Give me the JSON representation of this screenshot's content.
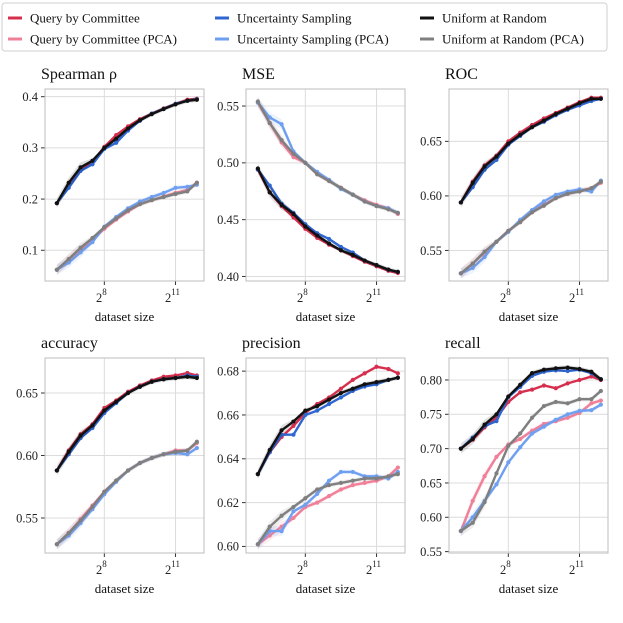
{
  "legend": [
    {
      "label": "Query by Committee",
      "color": "#d62f4e"
    },
    {
      "label": "Query by Committee (PCA)",
      "color": "#f07f98"
    },
    {
      "label": "Uncertainty Sampling",
      "color": "#2e66d2"
    },
    {
      "label": "Uncertainty Sampling (PCA)",
      "color": "#6f9ff0"
    },
    {
      "label": "Uniform at Random",
      "color": "#111111"
    },
    {
      "label": "Uniform at Random (PCA)",
      "color": "#7f7f7f"
    }
  ],
  "x_tick_labels": [
    {
      "base": "2",
      "exp": "8",
      "log2": 8
    },
    {
      "base": "2",
      "exp": "11",
      "log2": 11
    }
  ],
  "chart_data": [
    {
      "type": "line",
      "title": "Spearman ρ",
      "xlabel": "dataset size",
      "ylabel": "",
      "xscale": "log2",
      "xlim_log2": [
        5.5,
        12.2
      ],
      "ylim": [
        0.04,
        0.415
      ],
      "yticks": [
        0.1,
        0.2,
        0.3,
        0.4
      ],
      "ytick_labels": [
        "0.1",
        "0.2",
        "0.3",
        "0.4"
      ],
      "grid": true,
      "x_log2": [
        6,
        6.5,
        7,
        7.5,
        8,
        8.5,
        9,
        9.5,
        10,
        10.5,
        11,
        11.5,
        11.9
      ],
      "series": [
        {
          "name": "Query by Committee",
          "values": [
            0.192,
            0.228,
            0.258,
            0.272,
            0.302,
            0.325,
            0.342,
            0.356,
            0.367,
            0.377,
            0.386,
            0.394,
            0.396
          ]
        },
        {
          "name": "Query by Committee (PCA)",
          "values": [
            0.062,
            0.082,
            0.102,
            0.12,
            0.142,
            0.16,
            0.176,
            0.19,
            0.198,
            0.205,
            0.212,
            0.218,
            0.232
          ]
        },
        {
          "name": "Uncertainty Sampling",
          "values": [
            0.192,
            0.222,
            0.255,
            0.268,
            0.298,
            0.31,
            0.334,
            0.353,
            0.367,
            0.376,
            0.386,
            0.392,
            0.395
          ]
        },
        {
          "name": "Uncertainty Sampling (PCA)",
          "values": [
            0.062,
            0.076,
            0.096,
            0.116,
            0.146,
            0.165,
            0.182,
            0.195,
            0.204,
            0.212,
            0.222,
            0.224,
            0.228
          ]
        },
        {
          "name": "Uniform at Random",
          "values": [
            0.192,
            0.232,
            0.262,
            0.275,
            0.3,
            0.318,
            0.338,
            0.354,
            0.366,
            0.376,
            0.385,
            0.392,
            0.394
          ]
        },
        {
          "name": "Uniform at Random (PCA)",
          "values": [
            0.062,
            0.083,
            0.105,
            0.124,
            0.145,
            0.162,
            0.178,
            0.19,
            0.198,
            0.204,
            0.21,
            0.215,
            0.232
          ]
        }
      ]
    },
    {
      "type": "line",
      "title": "MSE",
      "xlabel": "dataset size",
      "ylabel": "",
      "xscale": "log2",
      "xlim_log2": [
        5.5,
        12.2
      ],
      "ylim": [
        0.396,
        0.565
      ],
      "yticks": [
        0.4,
        0.45,
        0.5,
        0.55
      ],
      "ytick_labels": [
        "0.40",
        "0.45",
        "0.50",
        "0.55"
      ],
      "grid": true,
      "x_log2": [
        6,
        6.5,
        7,
        7.5,
        8,
        8.5,
        9,
        9.5,
        10,
        10.5,
        11,
        11.5,
        11.9
      ],
      "series": [
        {
          "name": "Query by Committee",
          "values": [
            0.494,
            0.474,
            0.462,
            0.452,
            0.442,
            0.434,
            0.428,
            0.423,
            0.418,
            0.413,
            0.409,
            0.405,
            0.403
          ]
        },
        {
          "name": "Query by Committee (PCA)",
          "values": [
            0.553,
            0.535,
            0.518,
            0.505,
            0.5,
            0.49,
            0.484,
            0.478,
            0.472,
            0.467,
            0.463,
            0.46,
            0.455
          ]
        },
        {
          "name": "Uncertainty Sampling",
          "values": [
            0.494,
            0.48,
            0.464,
            0.456,
            0.446,
            0.438,
            0.433,
            0.426,
            0.421,
            0.414,
            0.41,
            0.406,
            0.404
          ]
        },
        {
          "name": "Uncertainty Sampling (PCA)",
          "values": [
            0.553,
            0.54,
            0.534,
            0.51,
            0.5,
            0.492,
            0.485,
            0.477,
            0.472,
            0.466,
            0.462,
            0.46,
            0.456
          ]
        },
        {
          "name": "Uniform at Random",
          "values": [
            0.495,
            0.474,
            0.463,
            0.455,
            0.444,
            0.436,
            0.429,
            0.423,
            0.419,
            0.414,
            0.41,
            0.406,
            0.404
          ]
        },
        {
          "name": "Uniform at Random (PCA)",
          "values": [
            0.554,
            0.535,
            0.52,
            0.508,
            0.5,
            0.49,
            0.484,
            0.478,
            0.472,
            0.466,
            0.462,
            0.459,
            0.456
          ]
        }
      ]
    },
    {
      "type": "line",
      "title": "ROC",
      "xlabel": "dataset size",
      "ylabel": "",
      "xscale": "log2",
      "xlim_log2": [
        5.5,
        12.2
      ],
      "ylim": [
        0.522,
        0.698
      ],
      "yticks": [
        0.55,
        0.6,
        0.65
      ],
      "ytick_labels": [
        "0.55",
        "0.60",
        "0.65"
      ],
      "grid": true,
      "x_log2": [
        6,
        6.5,
        7,
        7.5,
        8,
        8.5,
        9,
        9.5,
        10,
        10.5,
        11,
        11.5,
        11.9
      ],
      "series": [
        {
          "name": "Query by Committee",
          "values": [
            0.594,
            0.613,
            0.628,
            0.637,
            0.65,
            0.658,
            0.665,
            0.671,
            0.676,
            0.681,
            0.686,
            0.69,
            0.69
          ]
        },
        {
          "name": "Query by Committee (PCA)",
          "values": [
            0.529,
            0.538,
            0.548,
            0.558,
            0.568,
            0.576,
            0.585,
            0.592,
            0.598,
            0.602,
            0.605,
            0.607,
            0.612
          ]
        },
        {
          "name": "Uncertainty Sampling",
          "values": [
            0.594,
            0.608,
            0.624,
            0.633,
            0.647,
            0.655,
            0.663,
            0.668,
            0.674,
            0.679,
            0.683,
            0.687,
            0.689
          ]
        },
        {
          "name": "Uncertainty Sampling (PCA)",
          "values": [
            0.529,
            0.534,
            0.544,
            0.558,
            0.567,
            0.578,
            0.587,
            0.595,
            0.601,
            0.604,
            0.606,
            0.604,
            0.614
          ]
        },
        {
          "name": "Uniform at Random",
          "values": [
            0.594,
            0.612,
            0.627,
            0.636,
            0.648,
            0.656,
            0.663,
            0.669,
            0.675,
            0.68,
            0.685,
            0.689,
            0.689
          ]
        },
        {
          "name": "Uniform at Random (PCA)",
          "values": [
            0.529,
            0.538,
            0.549,
            0.558,
            0.568,
            0.576,
            0.585,
            0.591,
            0.598,
            0.602,
            0.604,
            0.607,
            0.613
          ]
        }
      ]
    },
    {
      "type": "line",
      "title": "accuracy",
      "xlabel": "dataset size",
      "ylabel": "",
      "xscale": "log2",
      "xlim_log2": [
        5.5,
        12.2
      ],
      "ylim": [
        0.522,
        0.678
      ],
      "yticks": [
        0.55,
        0.6,
        0.65
      ],
      "ytick_labels": [
        "0.55",
        "0.60",
        "0.65"
      ],
      "grid": true,
      "x_log2": [
        6,
        6.5,
        7,
        7.5,
        8,
        8.5,
        9,
        9.5,
        10,
        10.5,
        11,
        11.5,
        11.9
      ],
      "series": [
        {
          "name": "Query by Committee",
          "values": [
            0.588,
            0.604,
            0.617,
            0.625,
            0.638,
            0.644,
            0.651,
            0.656,
            0.66,
            0.663,
            0.664,
            0.666,
            0.664
          ]
        },
        {
          "name": "Query by Committee (PCA)",
          "values": [
            0.529,
            0.538,
            0.549,
            0.56,
            0.571,
            0.58,
            0.588,
            0.594,
            0.598,
            0.601,
            0.604,
            0.604,
            0.61
          ]
        },
        {
          "name": "Uncertainty Sampling",
          "values": [
            0.588,
            0.601,
            0.614,
            0.622,
            0.634,
            0.642,
            0.65,
            0.655,
            0.659,
            0.661,
            0.662,
            0.664,
            0.663
          ]
        },
        {
          "name": "Uncertainty Sampling (PCA)",
          "values": [
            0.529,
            0.536,
            0.546,
            0.557,
            0.569,
            0.579,
            0.588,
            0.594,
            0.598,
            0.601,
            0.602,
            0.601,
            0.606
          ]
        },
        {
          "name": "Uniform at Random",
          "values": [
            0.588,
            0.603,
            0.616,
            0.624,
            0.636,
            0.643,
            0.65,
            0.655,
            0.659,
            0.661,
            0.662,
            0.663,
            0.662
          ]
        },
        {
          "name": "Uniform at Random (PCA)",
          "values": [
            0.529,
            0.538,
            0.548,
            0.559,
            0.571,
            0.58,
            0.588,
            0.594,
            0.598,
            0.601,
            0.603,
            0.604,
            0.611
          ]
        }
      ]
    },
    {
      "type": "line",
      "title": "precision",
      "xlabel": "dataset size",
      "ylabel": "",
      "xscale": "log2",
      "xlim_log2": [
        5.5,
        12.2
      ],
      "ylim": [
        0.597,
        0.686
      ],
      "yticks": [
        0.6,
        0.62,
        0.64,
        0.66,
        0.68
      ],
      "ytick_labels": [
        "0.60",
        "0.62",
        "0.64",
        "0.66",
        "0.68"
      ],
      "grid": true,
      "x_log2": [
        6,
        6.5,
        7,
        7.5,
        8,
        8.5,
        9,
        9.5,
        10,
        10.5,
        11,
        11.5,
        11.9
      ],
      "series": [
        {
          "name": "Query by Committee",
          "values": [
            0.633,
            0.643,
            0.65,
            0.655,
            0.661,
            0.665,
            0.668,
            0.672,
            0.676,
            0.679,
            0.682,
            0.681,
            0.679
          ]
        },
        {
          "name": "Query by Committee (PCA)",
          "values": [
            0.601,
            0.605,
            0.609,
            0.613,
            0.618,
            0.62,
            0.623,
            0.626,
            0.628,
            0.629,
            0.63,
            0.632,
            0.636
          ]
        },
        {
          "name": "Uncertainty Sampling",
          "values": [
            0.633,
            0.643,
            0.651,
            0.651,
            0.66,
            0.662,
            0.665,
            0.668,
            0.671,
            0.673,
            0.674,
            0.676,
            0.677
          ]
        },
        {
          "name": "Uncertainty Sampling (PCA)",
          "values": [
            0.601,
            0.607,
            0.607,
            0.616,
            0.619,
            0.624,
            0.63,
            0.634,
            0.634,
            0.632,
            0.632,
            0.631,
            0.634
          ]
        },
        {
          "name": "Uniform at Random",
          "values": [
            0.633,
            0.644,
            0.653,
            0.657,
            0.662,
            0.664,
            0.667,
            0.67,
            0.672,
            0.674,
            0.675,
            0.676,
            0.677
          ]
        },
        {
          "name": "Uniform at Random (PCA)",
          "values": [
            0.601,
            0.609,
            0.614,
            0.618,
            0.622,
            0.626,
            0.628,
            0.629,
            0.63,
            0.631,
            0.631,
            0.632,
            0.633
          ]
        }
      ]
    },
    {
      "type": "line",
      "title": "recall",
      "xlabel": "dataset size",
      "ylabel": "",
      "xscale": "log2",
      "xlim_log2": [
        5.5,
        12.2
      ],
      "ylim": [
        0.548,
        0.832
      ],
      "yticks": [
        0.55,
        0.6,
        0.65,
        0.7,
        0.75,
        0.8
      ],
      "ytick_labels": [
        "0.55",
        "0.60",
        "0.65",
        "0.70",
        "0.75",
        "0.80"
      ],
      "grid": true,
      "x_log2": [
        6,
        6.5,
        7,
        7.5,
        8,
        8.5,
        9,
        9.5,
        10,
        10.5,
        11,
        11.5,
        11.9
      ],
      "series": [
        {
          "name": "Query by Committee",
          "values": [
            0.7,
            0.713,
            0.731,
            0.745,
            0.768,
            0.782,
            0.786,
            0.792,
            0.788,
            0.795,
            0.8,
            0.805,
            0.8
          ]
        },
        {
          "name": "Query by Committee (PCA)",
          "values": [
            0.58,
            0.624,
            0.66,
            0.688,
            0.706,
            0.714,
            0.726,
            0.736,
            0.74,
            0.745,
            0.752,
            0.766,
            0.77
          ]
        },
        {
          "name": "Uncertainty Sampling",
          "values": [
            0.7,
            0.716,
            0.733,
            0.74,
            0.775,
            0.79,
            0.806,
            0.812,
            0.814,
            0.813,
            0.815,
            0.81,
            0.801
          ]
        },
        {
          "name": "Uncertainty Sampling (PCA)",
          "values": [
            0.58,
            0.6,
            0.624,
            0.648,
            0.68,
            0.702,
            0.722,
            0.732,
            0.742,
            0.75,
            0.755,
            0.756,
            0.764
          ]
        },
        {
          "name": "Uniform at Random",
          "values": [
            0.7,
            0.714,
            0.735,
            0.75,
            0.776,
            0.793,
            0.81,
            0.815,
            0.817,
            0.818,
            0.816,
            0.812,
            0.801
          ]
        },
        {
          "name": "Uniform at Random (PCA)",
          "values": [
            0.58,
            0.592,
            0.622,
            0.664,
            0.704,
            0.722,
            0.745,
            0.762,
            0.768,
            0.766,
            0.772,
            0.772,
            0.784
          ]
        }
      ]
    }
  ]
}
